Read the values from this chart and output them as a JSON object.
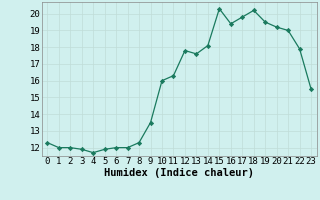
{
  "x": [
    0,
    1,
    2,
    3,
    4,
    5,
    6,
    7,
    8,
    9,
    10,
    11,
    12,
    13,
    14,
    15,
    16,
    17,
    18,
    19,
    20,
    21,
    22,
    23
  ],
  "y": [
    12.3,
    12.0,
    12.0,
    11.9,
    11.7,
    11.9,
    12.0,
    12.0,
    12.3,
    13.5,
    16.0,
    16.3,
    17.8,
    17.6,
    18.1,
    20.3,
    19.4,
    19.8,
    20.2,
    19.5,
    19.2,
    19.0,
    17.9,
    15.5
  ],
  "xlabel": "Humidex (Indice chaleur)",
  "ylim": [
    11.5,
    20.7
  ],
  "xlim": [
    -0.5,
    23.5
  ],
  "yticks": [
    12,
    13,
    14,
    15,
    16,
    17,
    18,
    19,
    20
  ],
  "xticks": [
    0,
    1,
    2,
    3,
    4,
    5,
    6,
    7,
    8,
    9,
    10,
    11,
    12,
    13,
    14,
    15,
    16,
    17,
    18,
    19,
    20,
    21,
    22,
    23
  ],
  "line_color": "#1a7a5e",
  "marker_color": "#1a7a5e",
  "bg_color": "#d0f0ee",
  "grid_color": "#c0ddd8",
  "xlabel_fontsize": 7.5,
  "tick_fontsize": 6.5
}
